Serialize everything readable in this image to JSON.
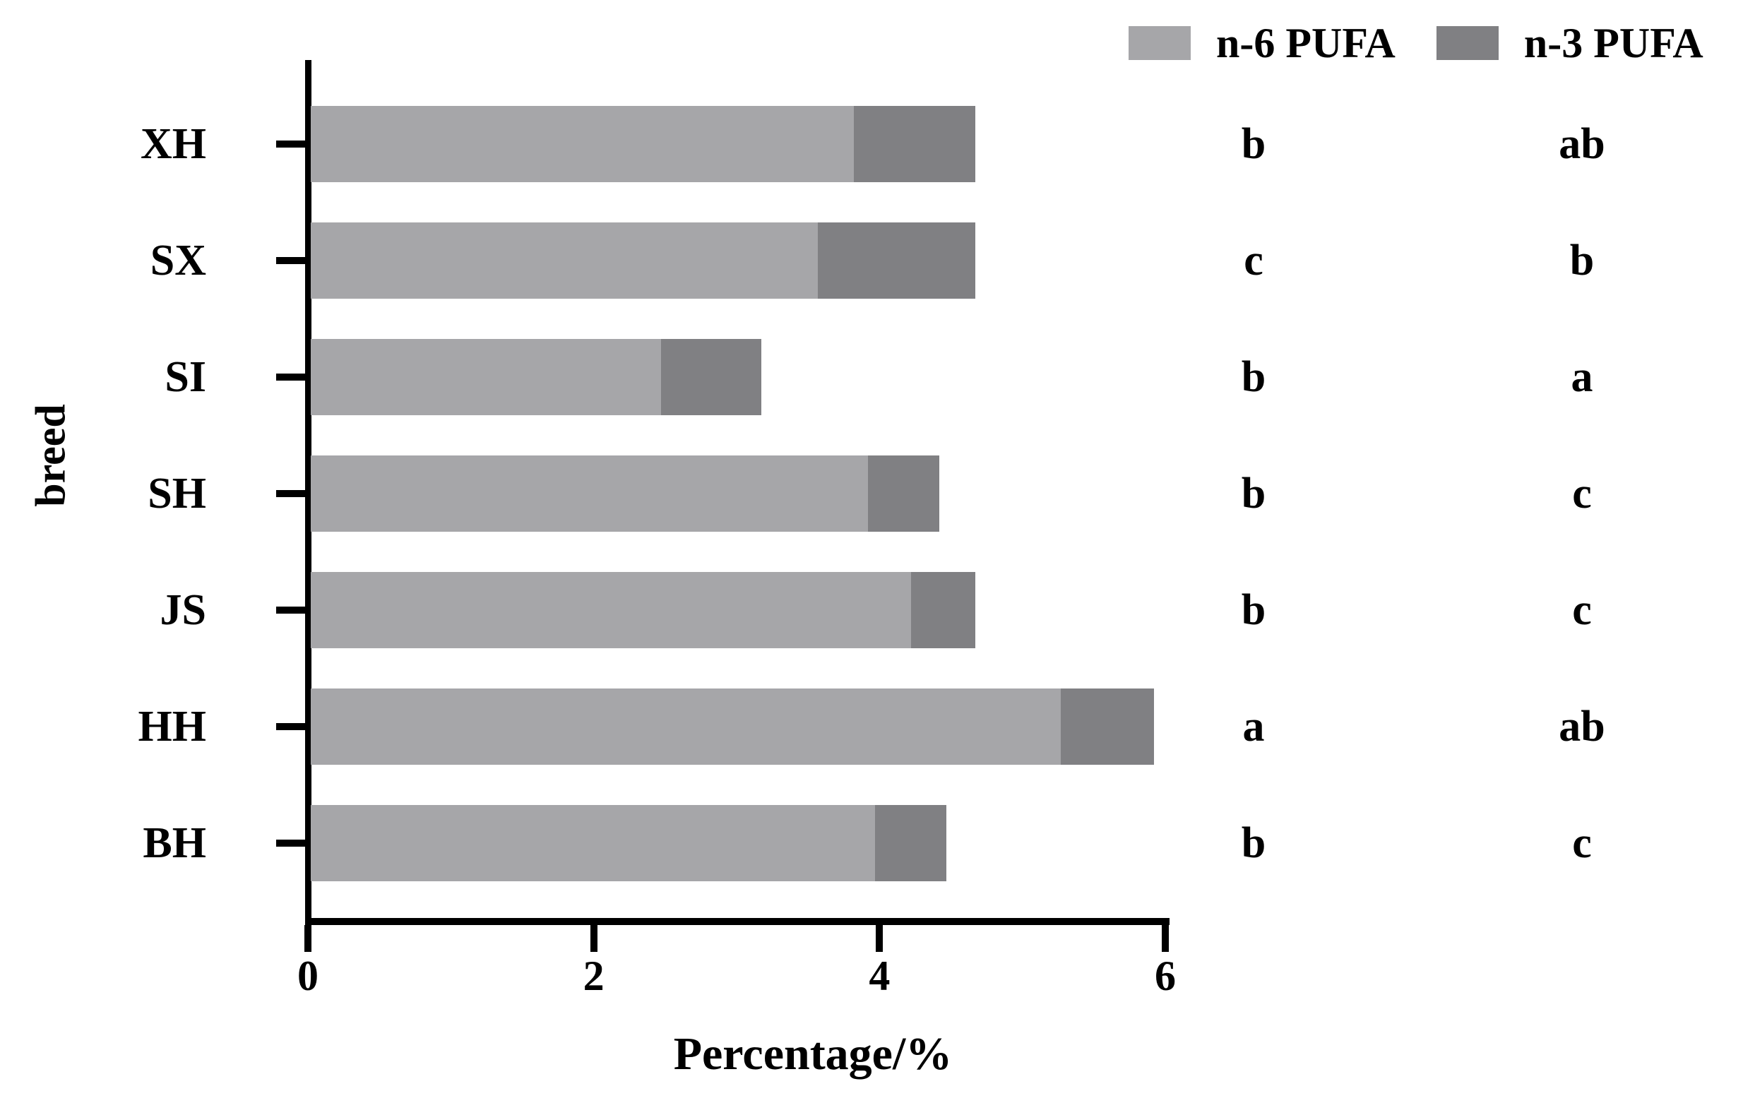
{
  "figure": {
    "y_axis_title": "breed",
    "x_axis_title": "Percentage/%"
  },
  "legend": {
    "items": [
      {
        "label": "n-6 PUFA",
        "color": "#a6a6a9"
      },
      {
        "label": "n-3 PUFA",
        "color": "#808083"
      }
    ]
  },
  "chart_data": {
    "type": "bar",
    "orientation": "horizontal",
    "stacked": true,
    "title": "",
    "xlabel": "Percentage/%",
    "ylabel": "breed",
    "xlim": [
      0,
      6
    ],
    "x_ticks": [
      0,
      2,
      4,
      6
    ],
    "grid": false,
    "legend_position": "top-right",
    "categories": [
      "XH",
      "SX",
      "SI",
      "SH",
      "JS",
      "HH",
      "BH"
    ],
    "series": [
      {
        "name": "n-6 PUFA",
        "color": "#a6a6a9",
        "values": [
          3.8,
          3.55,
          2.45,
          3.9,
          4.2,
          5.25,
          3.95
        ]
      },
      {
        "name": "n-3 PUFA",
        "color": "#808083",
        "values": [
          0.85,
          1.1,
          0.7,
          0.5,
          0.45,
          0.65,
          0.5
        ]
      }
    ],
    "totals": [
      4.65,
      4.65,
      3.15,
      4.4,
      4.65,
      5.9,
      4.45
    ],
    "significance_letters": {
      "n6": [
        "b",
        "c",
        "b",
        "b",
        "b",
        "a",
        "b"
      ],
      "n3": [
        "ab",
        "b",
        "a",
        "c",
        "c",
        "ab",
        "c"
      ]
    }
  }
}
